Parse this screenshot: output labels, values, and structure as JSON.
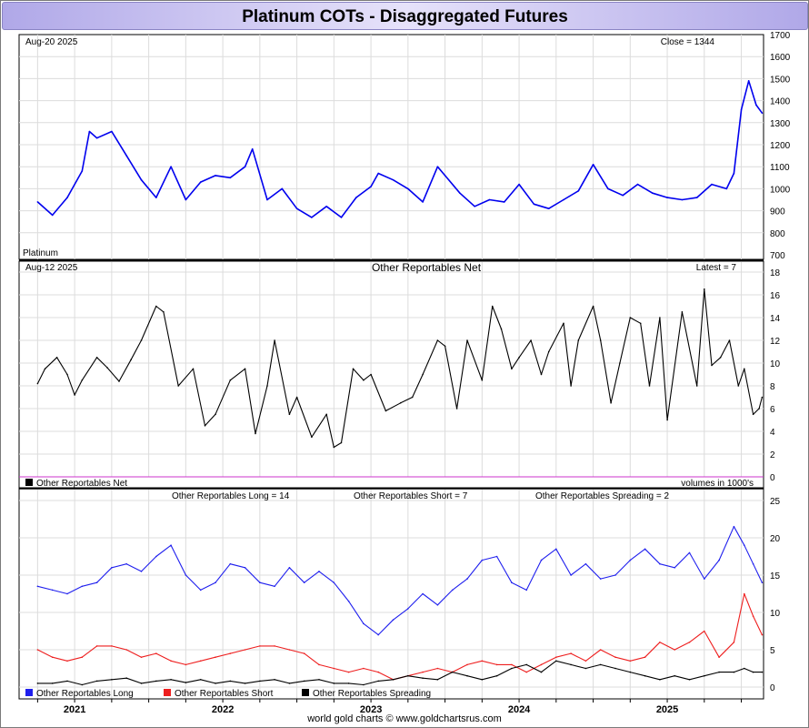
{
  "title": "Platinum COTs - Disaggregated Futures",
  "footer": "world gold charts © www.goldchartsrus.com",
  "colors": {
    "title_bar": "#c8c2f0",
    "price": "#0000ee",
    "net": "#000000",
    "long": "#1f1fee",
    "short": "#ee1f1f",
    "spreading": "#000000",
    "zero_line": "#cc33cc",
    "grid": "#dcdcdc"
  },
  "chart_data": [
    {
      "type": "line",
      "title": "",
      "date_label": "Aug-20  2025",
      "corner_label": "Close = 1344",
      "series_label": "Platinum",
      "ylim": [
        700,
        1700
      ],
      "yticks": [
        700,
        800,
        900,
        1000,
        1100,
        1200,
        1300,
        1400,
        1500,
        1600,
        1700
      ],
      "x": [
        2020.75,
        2020.85,
        2020.95,
        2021.05,
        2021.1,
        2021.15,
        2021.25,
        2021.35,
        2021.45,
        2021.55,
        2021.65,
        2021.75,
        2021.85,
        2021.95,
        2022.05,
        2022.15,
        2022.2,
        2022.3,
        2022.4,
        2022.5,
        2022.6,
        2022.7,
        2022.8,
        2022.9,
        2023.0,
        2023.05,
        2023.15,
        2023.25,
        2023.35,
        2023.45,
        2023.5,
        2023.6,
        2023.7,
        2023.8,
        2023.9,
        2024.0,
        2024.1,
        2024.2,
        2024.3,
        2024.4,
        2024.5,
        2024.6,
        2024.7,
        2024.8,
        2024.9,
        2025.0,
        2025.1,
        2025.2,
        2025.3,
        2025.4,
        2025.45,
        2025.5,
        2025.55,
        2025.6,
        2025.64
      ],
      "series": [
        {
          "values": [
            940,
            880,
            960,
            1080,
            1260,
            1230,
            1260,
            1150,
            1040,
            960,
            1100,
            950,
            1030,
            1060,
            1050,
            1100,
            1180,
            950,
            1000,
            910,
            870,
            920,
            870,
            960,
            1010,
            1070,
            1040,
            1000,
            940,
            1100,
            1060,
            980,
            920,
            950,
            940,
            1020,
            930,
            910,
            950,
            990,
            1110,
            1000,
            970,
            1020,
            980,
            960,
            950,
            960,
            1020,
            1000,
            1070,
            1360,
            1490,
            1380,
            1344
          ]
        }
      ]
    },
    {
      "type": "line",
      "title": "Other Reportables Net",
      "date_label": "Aug-12  2025",
      "corner_label": "Latest = 7",
      "legend": [
        "Other Reportables Net"
      ],
      "units_note": "volumes in 1000's",
      "ylim": [
        0,
        18
      ],
      "yticks": [
        0,
        2,
        4,
        6,
        8,
        10,
        12,
        14,
        16,
        18
      ],
      "x": [
        2020.75,
        2020.8,
        2020.88,
        2020.95,
        2021.0,
        2021.05,
        2021.15,
        2021.22,
        2021.3,
        2021.38,
        2021.45,
        2021.55,
        2021.6,
        2021.7,
        2021.8,
        2021.88,
        2021.95,
        2022.05,
        2022.15,
        2022.22,
        2022.3,
        2022.35,
        2022.45,
        2022.5,
        2022.6,
        2022.7,
        2022.75,
        2022.8,
        2022.88,
        2022.95,
        2023.0,
        2023.1,
        2023.2,
        2023.28,
        2023.35,
        2023.45,
        2023.5,
        2023.58,
        2023.65,
        2023.75,
        2023.82,
        2023.88,
        2023.95,
        2024.0,
        2024.08,
        2024.15,
        2024.2,
        2024.3,
        2024.35,
        2024.4,
        2024.5,
        2024.55,
        2024.62,
        2024.68,
        2024.75,
        2024.82,
        2024.88,
        2024.95,
        2025.0,
        2025.1,
        2025.2,
        2025.25,
        2025.3,
        2025.36,
        2025.42,
        2025.48,
        2025.52,
        2025.58,
        2025.62,
        2025.64
      ],
      "series": [
        {
          "name": "Other Reportables Net",
          "values": [
            8.2,
            9.5,
            10.5,
            9.0,
            7.2,
            8.5,
            10.5,
            9.6,
            8.4,
            10.3,
            12.0,
            15.0,
            14.5,
            8.0,
            9.5,
            4.5,
            5.5,
            8.5,
            9.5,
            3.8,
            8.0,
            12.0,
            5.5,
            7.0,
            3.5,
            5.5,
            2.6,
            3.0,
            9.5,
            8.5,
            9.0,
            5.8,
            6.5,
            7.0,
            9.0,
            12.0,
            11.5,
            6.0,
            12.0,
            8.5,
            15.0,
            13.0,
            9.5,
            10.5,
            12.0,
            9.0,
            11.0,
            13.5,
            8.0,
            12.0,
            15.0,
            12.0,
            6.5,
            10.0,
            14.0,
            13.5,
            8.0,
            14.0,
            5.0,
            14.5,
            8.0,
            16.5,
            9.8,
            10.5,
            12.0,
            8.0,
            9.5,
            5.5,
            6.0,
            7.0
          ]
        }
      ]
    },
    {
      "type": "line",
      "title": "",
      "top_labels": [
        "Other Reportables Long = 14",
        "Other Reportables Short = 7",
        "Other Reportables Spreading = 2"
      ],
      "legend": [
        "Other Reportables Long",
        "Other Reportables Short",
        "Other Reportables Spreading"
      ],
      "ylim": [
        -1,
        26
      ],
      "yticks": [
        0,
        5,
        10,
        15,
        20,
        25
      ],
      "xtick_labels": [
        "2021",
        "2022",
        "2023",
        "2024",
        "2025"
      ],
      "xticks": [
        2021.0,
        2022.0,
        2023.0,
        2024.0,
        2025.0
      ],
      "xlim": [
        2020.625,
        2025.65
      ],
      "x": [
        2020.75,
        2020.85,
        2020.95,
        2021.05,
        2021.15,
        2021.25,
        2021.35,
        2021.45,
        2021.55,
        2021.65,
        2021.75,
        2021.85,
        2021.95,
        2022.05,
        2022.15,
        2022.25,
        2022.35,
        2022.45,
        2022.55,
        2022.65,
        2022.75,
        2022.85,
        2022.95,
        2023.05,
        2023.15,
        2023.25,
        2023.35,
        2023.45,
        2023.55,
        2023.65,
        2023.75,
        2023.85,
        2023.95,
        2024.05,
        2024.15,
        2024.25,
        2024.35,
        2024.45,
        2024.55,
        2024.65,
        2024.75,
        2024.85,
        2024.95,
        2025.05,
        2025.15,
        2025.25,
        2025.35,
        2025.45,
        2025.52,
        2025.58,
        2025.64
      ],
      "series": [
        {
          "name": "Other Reportables Long",
          "values": [
            13.5,
            13.0,
            12.5,
            13.5,
            14.0,
            16.0,
            16.5,
            15.5,
            17.5,
            19.0,
            15.0,
            13.0,
            14.0,
            16.5,
            16.0,
            14.0,
            13.5,
            16.0,
            14.0,
            15.5,
            14.0,
            11.5,
            8.5,
            7.0,
            9.0,
            10.5,
            12.5,
            11.0,
            13.0,
            14.5,
            17.0,
            17.5,
            14.0,
            13.0,
            17.0,
            18.5,
            15.0,
            16.5,
            14.5,
            15.0,
            17.0,
            18.5,
            16.5,
            16.0,
            18.0,
            14.5,
            17.0,
            21.5,
            19.0,
            16.5,
            14.0
          ]
        },
        {
          "name": "Other Reportables Short",
          "values": [
            5.0,
            4.0,
            3.5,
            4.0,
            5.5,
            5.5,
            5.0,
            4.0,
            4.5,
            3.5,
            3.0,
            3.5,
            4.0,
            4.5,
            5.0,
            5.5,
            5.5,
            5.0,
            4.5,
            3.0,
            2.5,
            2.0,
            2.5,
            2.0,
            1.0,
            1.5,
            2.0,
            2.5,
            2.0,
            3.0,
            3.5,
            3.0,
            3.0,
            2.0,
            3.0,
            4.0,
            4.5,
            3.5,
            5.0,
            4.0,
            3.5,
            4.0,
            6.0,
            5.0,
            6.0,
            7.5,
            4.0,
            6.0,
            12.5,
            9.5,
            7.0
          ]
        },
        {
          "name": "Other Reportables Spreading",
          "values": [
            0.5,
            0.5,
            0.8,
            0.3,
            0.8,
            1.0,
            1.2,
            0.5,
            0.8,
            1.0,
            0.6,
            1.0,
            0.5,
            0.8,
            0.5,
            0.8,
            1.0,
            0.5,
            0.8,
            1.0,
            0.5,
            0.5,
            0.3,
            0.8,
            1.0,
            1.5,
            1.2,
            1.0,
            2.0,
            1.5,
            1.0,
            1.5,
            2.5,
            3.0,
            2.0,
            3.5,
            3.0,
            2.5,
            3.0,
            2.5,
            2.0,
            1.5,
            1.0,
            1.5,
            1.0,
            1.5,
            2.0,
            2.0,
            2.5,
            2.0,
            2.0
          ]
        }
      ]
    }
  ]
}
